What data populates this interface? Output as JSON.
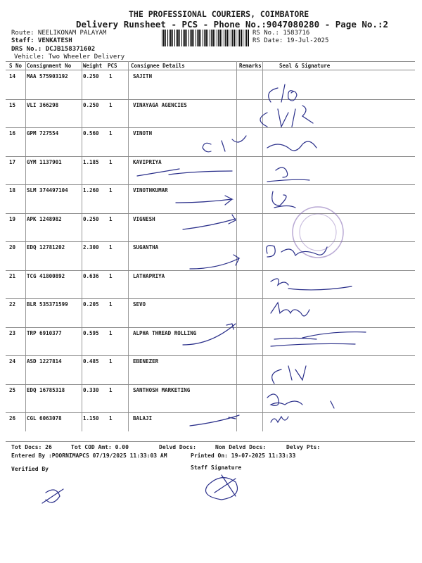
{
  "header": {
    "company": "THE PROFESSIONAL COURIERS, COIMBATORE",
    "title": "Delivery Runsheet - PCS - Phone No.:9047080280 - Page No.:2",
    "route": "Route: NEELIKONAM PALAYAM",
    "staff": "Staff: VENKATESH",
    "drs_no": "DRS No.: DCJB158371602",
    "vehicle": "Vehicle: Two Wheeler Delivery",
    "rs_no": "RS No.: 1583716",
    "rs_date": "RS Date: 19-Jul-2025"
  },
  "table": {
    "columns": [
      "S No",
      "Consignment No",
      "Weight",
      "PCS",
      "Consignee Details",
      "Remarks",
      "Seal & Signature"
    ],
    "rows": [
      {
        "sno": "14",
        "consignment": "MAA 575903192",
        "weight": "0.250",
        "pcs": "1",
        "consignee": "SAJITH"
      },
      {
        "sno": "15",
        "consignment": "VLI 366298",
        "weight": "0.250",
        "pcs": "1",
        "consignee": "VINAYAGA AGENCIES"
      },
      {
        "sno": "16",
        "consignment": "GPM 727554",
        "weight": "0.560",
        "pcs": "1",
        "consignee": "VINOTH"
      },
      {
        "sno": "17",
        "consignment": "GYM 1137901",
        "weight": "1.185",
        "pcs": "1",
        "consignee": "KAVIPRIYA"
      },
      {
        "sno": "18",
        "consignment": "SLM 374497104",
        "weight": "1.260",
        "pcs": "1",
        "consignee": "VINOTHKUMAR"
      },
      {
        "sno": "19",
        "consignment": "APK 1248982",
        "weight": "0.250",
        "pcs": "1",
        "consignee": "VIGNESH"
      },
      {
        "sno": "20",
        "consignment": "EDQ 12781202",
        "weight": "2.300",
        "pcs": "1",
        "consignee": "SUGANTHA"
      },
      {
        "sno": "21",
        "consignment": "TCG 41800892",
        "weight": "0.636",
        "pcs": "1",
        "consignee": "LATHAPRIYA"
      },
      {
        "sno": "22",
        "consignment": "BLR 535371599",
        "weight": "0.205",
        "pcs": "1",
        "consignee": "SEVO"
      },
      {
        "sno": "23",
        "consignment": "TRP 6910377",
        "weight": "0.595",
        "pcs": "1",
        "consignee": "ALPHA THREAD ROLLING"
      },
      {
        "sno": "24",
        "consignment": "ASD 1227814",
        "weight": "0.485",
        "pcs": "1",
        "consignee": "EBENEZER"
      },
      {
        "sno": "25",
        "consignment": "EDQ 16785318",
        "weight": "0.330",
        "pcs": "1",
        "consignee": "SANTHOSH MARKETING"
      },
      {
        "sno": "26",
        "consignment": "CGL 6063078",
        "weight": "1.150",
        "pcs": "1",
        "consignee": "BALAJI"
      }
    ]
  },
  "footer": {
    "tot_docs": "Tot Docs:  26",
    "tot_cod": "Tot COD Amt:    0.00",
    "delvd_docs": "Delvd Docs:",
    "non_delvd_docs": "Non Delvd Docs:",
    "delvy_pts": "Delvy Pts:",
    "entered_by": "Entered By :POORNIMAPCS 07/19/2025 11:33:03 AM",
    "printed_on": "Printed On: 19-07-2025 11:33:33",
    "verified_by": "Verified By",
    "staff_signature": "Staff Signature"
  },
  "colors": {
    "ink": "#2a2f8a",
    "stamp": "#8a6fb8"
  }
}
